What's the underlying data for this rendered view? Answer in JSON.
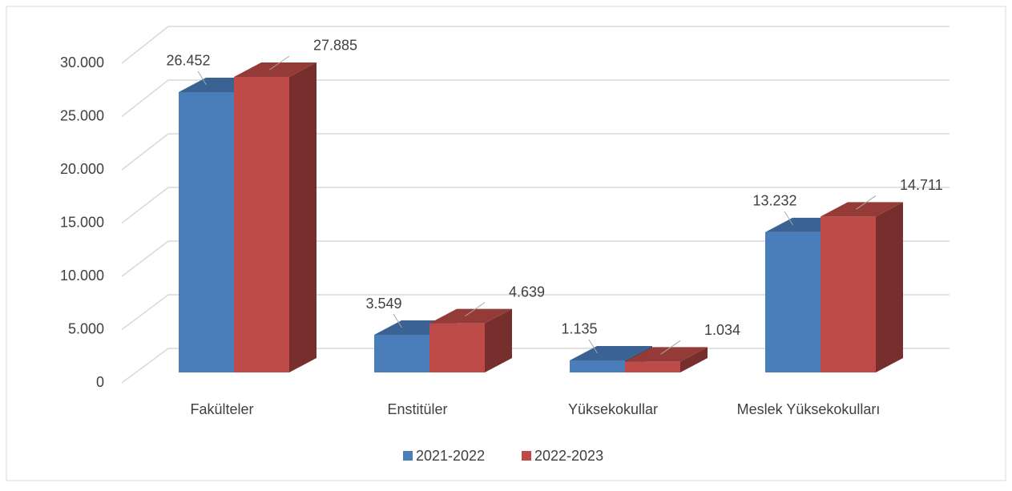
{
  "chart_data": {
    "type": "bar3d",
    "categories": [
      "Fakülteler",
      "Enstitüler",
      "Yüksekokullar",
      "Meslek Yüksekokulları"
    ],
    "series": [
      {
        "name": "2021-2022",
        "color": "#4a7ebb",
        "values": [
          26452,
          3549,
          1135,
          13232
        ],
        "value_labels": [
          "26.452",
          "3.549",
          "1.135",
          "13.232"
        ]
      },
      {
        "name": "2022-2023",
        "color": "#be4b48",
        "values": [
          27885,
          4639,
          1034,
          14711
        ],
        "value_labels": [
          "27.885",
          "4.639",
          "1.034",
          "14.711"
        ]
      }
    ],
    "ylim": [
      0,
      30000
    ],
    "yticks": [
      0,
      {
        "value": 5000,
        "label": "5.000"
      },
      {
        "value": 10000,
        "label": "10.000"
      },
      {
        "value": 15000,
        "label": "15.000"
      },
      {
        "value": 20000,
        "label": "20.000"
      },
      {
        "value": 25000,
        "label": "25.000"
      },
      {
        "value": 30000,
        "label": "30.000"
      }
    ],
    "grid": true,
    "legend": "bottom"
  }
}
